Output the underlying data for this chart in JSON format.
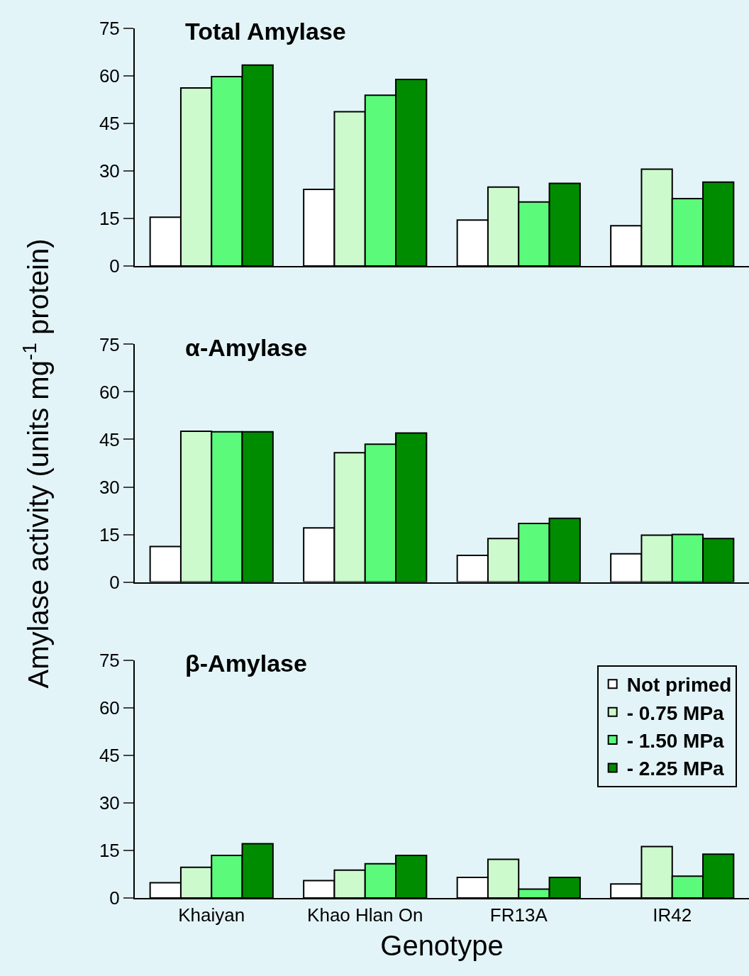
{
  "chart_data": [
    {
      "type": "bar",
      "title": "Total Amylase",
      "categories": [
        null,
        null,
        null,
        null
      ],
      "ylim": [
        0,
        75
      ],
      "yticks": [
        0,
        15,
        30,
        45,
        60,
        75
      ],
      "tick_labels": "y",
      "grid": false,
      "legend": false,
      "series": [
        {
          "color": "#ffffff",
          "values": [
            15.4,
            24.2,
            14.5,
            12.7
          ]
        },
        {
          "color": "#ccfacc",
          "values": [
            56.2,
            48.7,
            24.9,
            30.6
          ]
        },
        {
          "color": "#5cfa7a",
          "values": [
            59.8,
            53.9,
            20.2,
            21.3
          ]
        },
        {
          "color": "#008c00",
          "values": [
            63.4,
            58.9,
            26.1,
            26.5
          ]
        }
      ]
    },
    {
      "type": "bar",
      "title": "α-Amylase",
      "ylabel": "Amylase activity (units mg$^{-1}$ protein)",
      "categories": [
        null,
        null,
        null,
        null
      ],
      "ylim": [
        0,
        75
      ],
      "yticks": [
        0,
        15,
        30,
        45,
        60,
        75
      ],
      "tick_labels": "y",
      "grid": false,
      "legend": false,
      "series": [
        {
          "color": "#ffffff",
          "values": [
            11.2,
            17.1,
            8.4,
            8.9
          ]
        },
        {
          "color": "#ccfacc",
          "values": [
            47.6,
            40.8,
            13.7,
            14.8
          ]
        },
        {
          "color": "#5cfa7a",
          "values": [
            47.4,
            43.5,
            18.5,
            15.0
          ]
        },
        {
          "color": "#008c00",
          "values": [
            47.4,
            47.0,
            20.1,
            13.7
          ]
        }
      ]
    },
    {
      "type": "bar",
      "title": "β-Amylase",
      "xlabel": "Genotype",
      "categories": [
        "Khaiyan",
        "Khao Hlan On",
        "FR13A",
        "IR42"
      ],
      "ylim": [
        0,
        75
      ],
      "yticks": [
        0,
        15,
        30,
        45,
        60,
        75
      ],
      "grid": false,
      "legend": "top right",
      "series": [
        {
          "name": "Not primed",
          "color": "#ffffff",
          "values": [
            4.8,
            5.5,
            6.5,
            4.4
          ]
        },
        {
          "name": "- 0.75 MPa",
          "color": "#ccfacc",
          "values": [
            9.7,
            8.8,
            12.2,
            16.2
          ]
        },
        {
          "name": "- 1.50 MPa",
          "color": "#5cfa7a",
          "values": [
            13.4,
            10.8,
            2.8,
            6.9
          ]
        },
        {
          "name": "- 2.25 MPa",
          "color": "#008c00",
          "values": [
            17.1,
            13.4,
            6.5,
            13.8
          ]
        }
      ]
    }
  ]
}
